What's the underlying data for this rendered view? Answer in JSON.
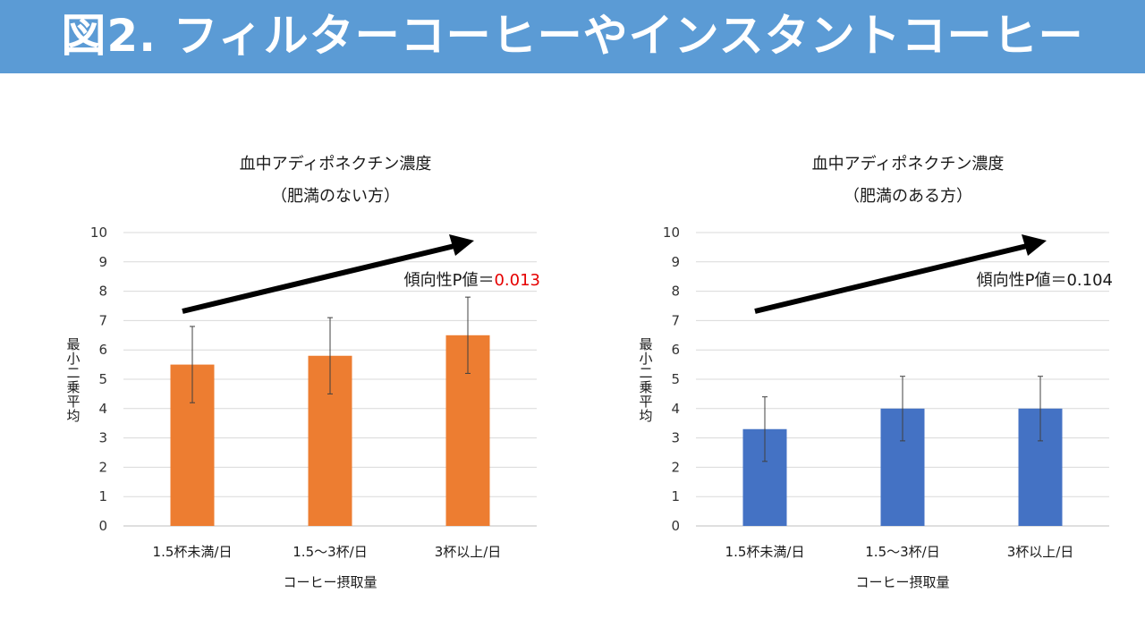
{
  "header": {
    "title": "図2. フィルターコーヒーやインスタントコーヒー",
    "background_color": "#5b9bd5"
  },
  "chart_data": [
    {
      "type": "bar",
      "title": "血中アディポネクチン濃度",
      "subtitle": "（肥満のない方）",
      "categories": [
        "1.5杯未満/日",
        "1.5〜3杯/日",
        "3杯以上/日"
      ],
      "values": [
        5.5,
        5.8,
        6.5
      ],
      "error": [
        1.3,
        1.3,
        1.3
      ],
      "ylim": [
        0,
        10
      ],
      "yticks": [
        0,
        1,
        2,
        3,
        4,
        5,
        6,
        7,
        8,
        9,
        10
      ],
      "xlabel": "コーヒー摂取量",
      "ylabel": "最小二乗平均",
      "grid": true,
      "bar_color": "#ed7d31",
      "annotation": {
        "label": "傾向性P値＝",
        "value": "0.013",
        "value_color": "#e60000",
        "arrow": "trend arrow rising from left to right"
      }
    },
    {
      "type": "bar",
      "title": "血中アディポネクチン濃度",
      "subtitle": "（肥満のある方）",
      "categories": [
        "1.5杯未満/日",
        "1.5〜3杯/日",
        "3杯以上/日"
      ],
      "values": [
        3.3,
        4.0,
        4.0
      ],
      "error": [
        1.1,
        1.1,
        1.1
      ],
      "ylim": [
        0,
        10
      ],
      "yticks": [
        0,
        1,
        2,
        3,
        4,
        5,
        6,
        7,
        8,
        9,
        10
      ],
      "xlabel": "コーヒー摂取量",
      "ylabel": "最小二乗平均",
      "grid": true,
      "bar_color": "#4472c4",
      "annotation": {
        "label": "傾向性P値＝",
        "value": "0.104",
        "value_color": "#1a1a1a",
        "arrow": "trend arrow rising from left to right"
      }
    }
  ]
}
